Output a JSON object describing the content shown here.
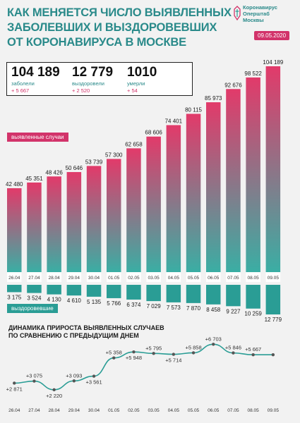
{
  "title_lines": [
    "Как меняется число выявленных",
    "заболевших и выздоровевших",
    "от коронавируса в Москве"
  ],
  "brand": {
    "lines": [
      "Коронавирус",
      "Оперштаб",
      "Москвы"
    ],
    "date": "09.05.2020"
  },
  "stats": [
    {
      "value": "104 189",
      "label": "заболели",
      "delta": "+ 5 667"
    },
    {
      "value": "12 779",
      "label": "выздоровели",
      "delta": "+ 2 520"
    },
    {
      "value": "1010",
      "label": "умерли",
      "delta": "+ 54"
    }
  ],
  "legend": {
    "cases": "выявленные случаи",
    "recovered": "выздоровевшие"
  },
  "subtitle_lines": [
    "Динамика прироста выявленных случаев",
    "по сравнению с предыдущим днем"
  ],
  "colors": {
    "teal": "#2a9d95",
    "pink": "#d2336a",
    "cases_top": "#e23a6a",
    "cases_bottom": "#3aaea4"
  },
  "chart_data": [
    {
      "type": "bar",
      "categories": [
        "26.04",
        "27.04",
        "28.04",
        "29.04",
        "30.04",
        "01.05",
        "02.05",
        "03.05",
        "04.05",
        "05.05",
        "06.05",
        "07.05",
        "08.05",
        "09.05"
      ],
      "series": [
        {
          "name": "выявленные случаи",
          "values": [
            42480,
            45351,
            48426,
            50646,
            53739,
            57300,
            62658,
            68606,
            74401,
            80115,
            85973,
            92676,
            98522,
            104189
          ],
          "labels": [
            "42 480",
            "45 351",
            "48 426",
            "50 646",
            "53 739",
            "57 300",
            "62 658",
            "68 606",
            "74 401",
            "80 115",
            "85 973",
            "92 676",
            "98 522",
            "104 189"
          ]
        },
        {
          "name": "выздоровевшие",
          "values": [
            3175,
            3524,
            4130,
            4610,
            5135,
            5766,
            6374,
            7029,
            7573,
            7870,
            8458,
            9227,
            10259,
            12779
          ],
          "labels": [
            "3 175",
            "3 524",
            "4 130",
            "4 610",
            "5 135",
            "5 766",
            "6 374",
            "7 029",
            "7 573",
            "7 870",
            "8 458",
            "9 227",
            "10 259",
            "12 779"
          ]
        }
      ]
    },
    {
      "type": "line",
      "categories": [
        "26.04",
        "27.04",
        "28.04",
        "29.04",
        "30.04",
        "01.05",
        "02.05",
        "03.05",
        "04.05",
        "05.05",
        "06.05",
        "07.05",
        "08.05",
        "09.05"
      ],
      "series": [
        {
          "values": [
            2871,
            3075,
            2220,
            3093,
            3561,
            5358,
            5948,
            5795,
            5714,
            5858,
            6703,
            5846,
            5667,
            5667
          ],
          "labels": [
            "+2 871",
            "+3 075",
            "+2 220",
            "+3 093",
            "+3 561",
            "+5 358",
            "+5 948",
            "+5 795",
            "+5 714",
            "+5 858",
            "+6 703",
            "+5 846",
            "+5 667",
            ""
          ]
        }
      ]
    }
  ]
}
